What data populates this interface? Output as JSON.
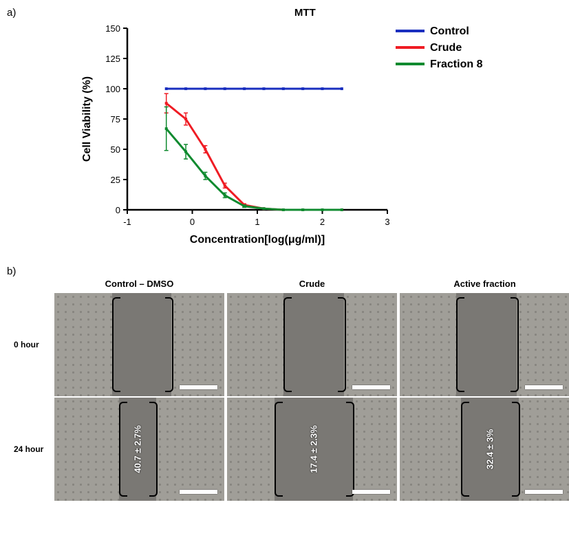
{
  "panelA": {
    "label": "a)",
    "chart": {
      "type": "line",
      "title": "MTT",
      "title_fontsize": 15,
      "xlabel": "Concentration[log(μg/ml)]",
      "ylabel": "Cell Viability (%)",
      "label_fontsize": 16,
      "tick_fontsize": 13,
      "xlim": [
        -1,
        3
      ],
      "ylim": [
        0,
        150
      ],
      "xtick_step": 1,
      "ytick_step": 25,
      "background_color": "#ffffff",
      "axis_color": "#000000",
      "axis_line_width": 2.5,
      "marker_size": 4,
      "line_width": 3,
      "legend": {
        "items": [
          {
            "label": "Control",
            "color": "#1a2fbf",
            "marker": "square"
          },
          {
            "label": "Crude",
            "color": "#ef1c24",
            "marker": "square"
          },
          {
            "label": "Fraction 8",
            "color": "#0f8a2f",
            "marker": "square"
          }
        ],
        "fontsize": 16,
        "line_length": 42,
        "position": "upper-right"
      },
      "series": [
        {
          "name": "Control",
          "color": "#1a2fbf",
          "x": [
            -0.4,
            -0.1,
            0.2,
            0.5,
            0.8,
            1.1,
            1.4,
            1.7,
            2.0,
            2.3
          ],
          "y": [
            100,
            100,
            100,
            100,
            100,
            100,
            100,
            100,
            100,
            100
          ],
          "err": [
            0,
            0,
            0,
            0,
            0,
            0,
            0,
            0,
            0,
            0
          ]
        },
        {
          "name": "Crude",
          "color": "#ef1c24",
          "x": [
            -0.4,
            -0.1,
            0.2,
            0.5,
            0.8,
            1.1,
            1.4,
            1.7,
            2.0,
            2.3
          ],
          "y": [
            88,
            75,
            50,
            20,
            4,
            1,
            0,
            0,
            0,
            0
          ],
          "err": [
            8,
            5,
            3,
            2,
            1,
            0,
            0,
            0,
            0,
            0
          ]
        },
        {
          "name": "Fraction 8",
          "color": "#0f8a2f",
          "x": [
            -0.4,
            -0.1,
            0.2,
            0.5,
            0.8,
            1.1,
            1.4,
            1.7,
            2.0,
            2.3
          ],
          "y": [
            67,
            48,
            28,
            12,
            3,
            1,
            0,
            0,
            0,
            0
          ],
          "err": [
            18,
            6,
            3,
            2,
            1,
            0,
            0,
            0,
            0,
            0
          ]
        }
      ]
    }
  },
  "panelB": {
    "label": "b)",
    "columns": [
      {
        "key": "control",
        "label": "Control – DMSO"
      },
      {
        "key": "crude",
        "label": "Crude"
      },
      {
        "key": "active",
        "label": "Active fraction"
      }
    ],
    "rows": [
      {
        "key": "t0",
        "label": "0 hour"
      },
      {
        "key": "t24",
        "label": "24 hour"
      }
    ],
    "image_style": {
      "cell_bg": "#a09e98",
      "wound_bg": "#7a7874",
      "frame_bg": "#8d8b86",
      "brace_color": "#000000",
      "label_color": "#ffffff",
      "scalebar_color": "#ffffff"
    },
    "cells": {
      "t0": {
        "control": {
          "wound_left_pct": 34,
          "wound_width_pct": 35,
          "braces": true,
          "measurement": ""
        },
        "crude": {
          "wound_left_pct": 33,
          "wound_width_pct": 36,
          "braces": true,
          "measurement": ""
        },
        "active": {
          "wound_left_pct": 33,
          "wound_width_pct": 36,
          "braces": true,
          "measurement": ""
        }
      },
      "t24": {
        "control": {
          "wound_left_pct": 38,
          "wound_width_pct": 22,
          "braces": true,
          "measurement": "40.7 ± 2.7%"
        },
        "crude": {
          "wound_left_pct": 28,
          "wound_width_pct": 46,
          "braces": true,
          "measurement": "17.4 ± 2.3%"
        },
        "active": {
          "wound_left_pct": 36,
          "wound_width_pct": 34,
          "braces": true,
          "measurement": "32.4 ± 3%"
        }
      }
    }
  }
}
